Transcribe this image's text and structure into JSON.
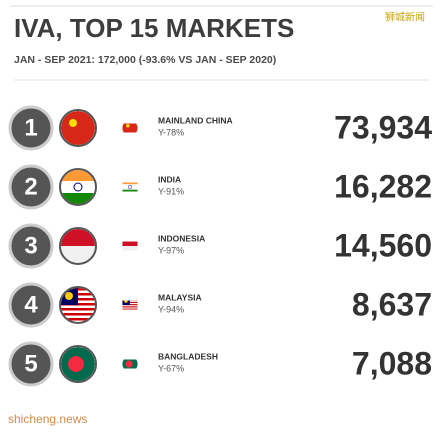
{
  "header": {
    "title": "IVA, TOP 15 MARKETS",
    "subtitle": "JAN - SEP 2021: 172,000 (-93.6% VS JAN - SEP 2020)",
    "watermark": "狮城新闻"
  },
  "rows": [
    {
      "rank": "1",
      "country": "MAINLAND CHINA",
      "change": "Y-78%",
      "value": "73,934"
    },
    {
      "rank": "2",
      "country": "INDIA",
      "change": "Y-91%",
      "value": "16,282"
    },
    {
      "rank": "3",
      "country": "INDONESIA",
      "change": "Y-97%",
      "value": "14,560"
    },
    {
      "rank": "4",
      "country": "MALAYSIA",
      "change": "Y-94%",
      "value": "8,637"
    },
    {
      "rank": "5",
      "country": "BANGLADESH",
      "change": "Y-67%",
      "value": "7,088"
    }
  ],
  "footer": {
    "source": "shicheng.news"
  }
}
